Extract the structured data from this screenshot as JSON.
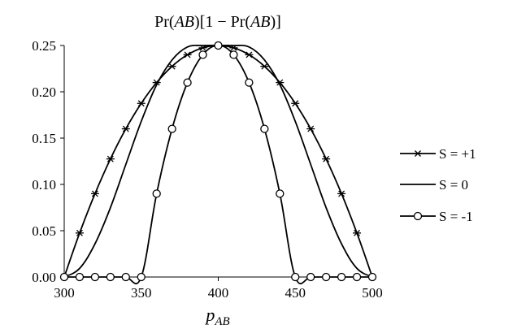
{
  "chart_data": {
    "type": "line",
    "title": "Pr(AB)[1 − Pr(AB)]",
    "title_parts": [
      "Pr(",
      "AB",
      ")[1 − Pr(",
      "AB",
      ")]"
    ],
    "xlabel": "p_AB",
    "xlabel_main": "p",
    "xlabel_sub": "AB",
    "xlim": [
      300,
      500
    ],
    "ylim": [
      0,
      0.25
    ],
    "x_ticks": [
      300,
      350,
      400,
      450,
      500
    ],
    "x_tick_labels": [
      "300",
      "350",
      "400",
      "450",
      "500"
    ],
    "y_ticks": [
      0,
      0.05,
      0.1,
      0.15,
      0.2,
      0.25
    ],
    "y_tick_labels": [
      "0.00",
      "0.05",
      "0.10",
      "0.15",
      "0.20",
      "0.25"
    ],
    "grid": false,
    "legend_position": "right",
    "series": [
      {
        "name": "S = +1",
        "marker": "star",
        "x": [
          300,
          310,
          320,
          330,
          340,
          350,
          360,
          370,
          380,
          390,
          400,
          410,
          420,
          430,
          440,
          450,
          460,
          470,
          480,
          490,
          500
        ],
        "values": [
          0,
          0.0475,
          0.09,
          0.1275,
          0.16,
          0.1875,
          0.21,
          0.2275,
          0.24,
          0.2475,
          0.25,
          0.2475,
          0.24,
          0.2275,
          0.21,
          0.1875,
          0.16,
          0.1275,
          0.09,
          0.0475,
          0
        ]
      },
      {
        "name": "S = 0",
        "marker": "none",
        "x": [
          300,
          310,
          320,
          330,
          340,
          350,
          360,
          370,
          380,
          390,
          400,
          410,
          420,
          430,
          440,
          450,
          460,
          470,
          480,
          490,
          500
        ],
        "values": [
          0,
          0.0093,
          0.0359,
          0.0749,
          0.1216,
          0.168,
          0.2076,
          0.2344,
          0.2484,
          0.25,
          0.25,
          0.25,
          0.2484,
          0.2344,
          0.2076,
          0.168,
          0.1216,
          0.0749,
          0.0359,
          0.0093,
          0
        ]
      },
      {
        "name": "S = -1",
        "marker": "circle",
        "x": [
          300,
          310,
          320,
          330,
          340,
          350,
          360,
          370,
          380,
          390,
          400,
          410,
          420,
          430,
          440,
          450,
          460,
          470,
          480,
          490,
          500
        ],
        "values": [
          0,
          0,
          0,
          0,
          0,
          0,
          0.09,
          0.16,
          0.21,
          0.24,
          0.25,
          0.24,
          0.21,
          0.16,
          0.09,
          0,
          0,
          0,
          0,
          0,
          0
        ]
      }
    ]
  }
}
